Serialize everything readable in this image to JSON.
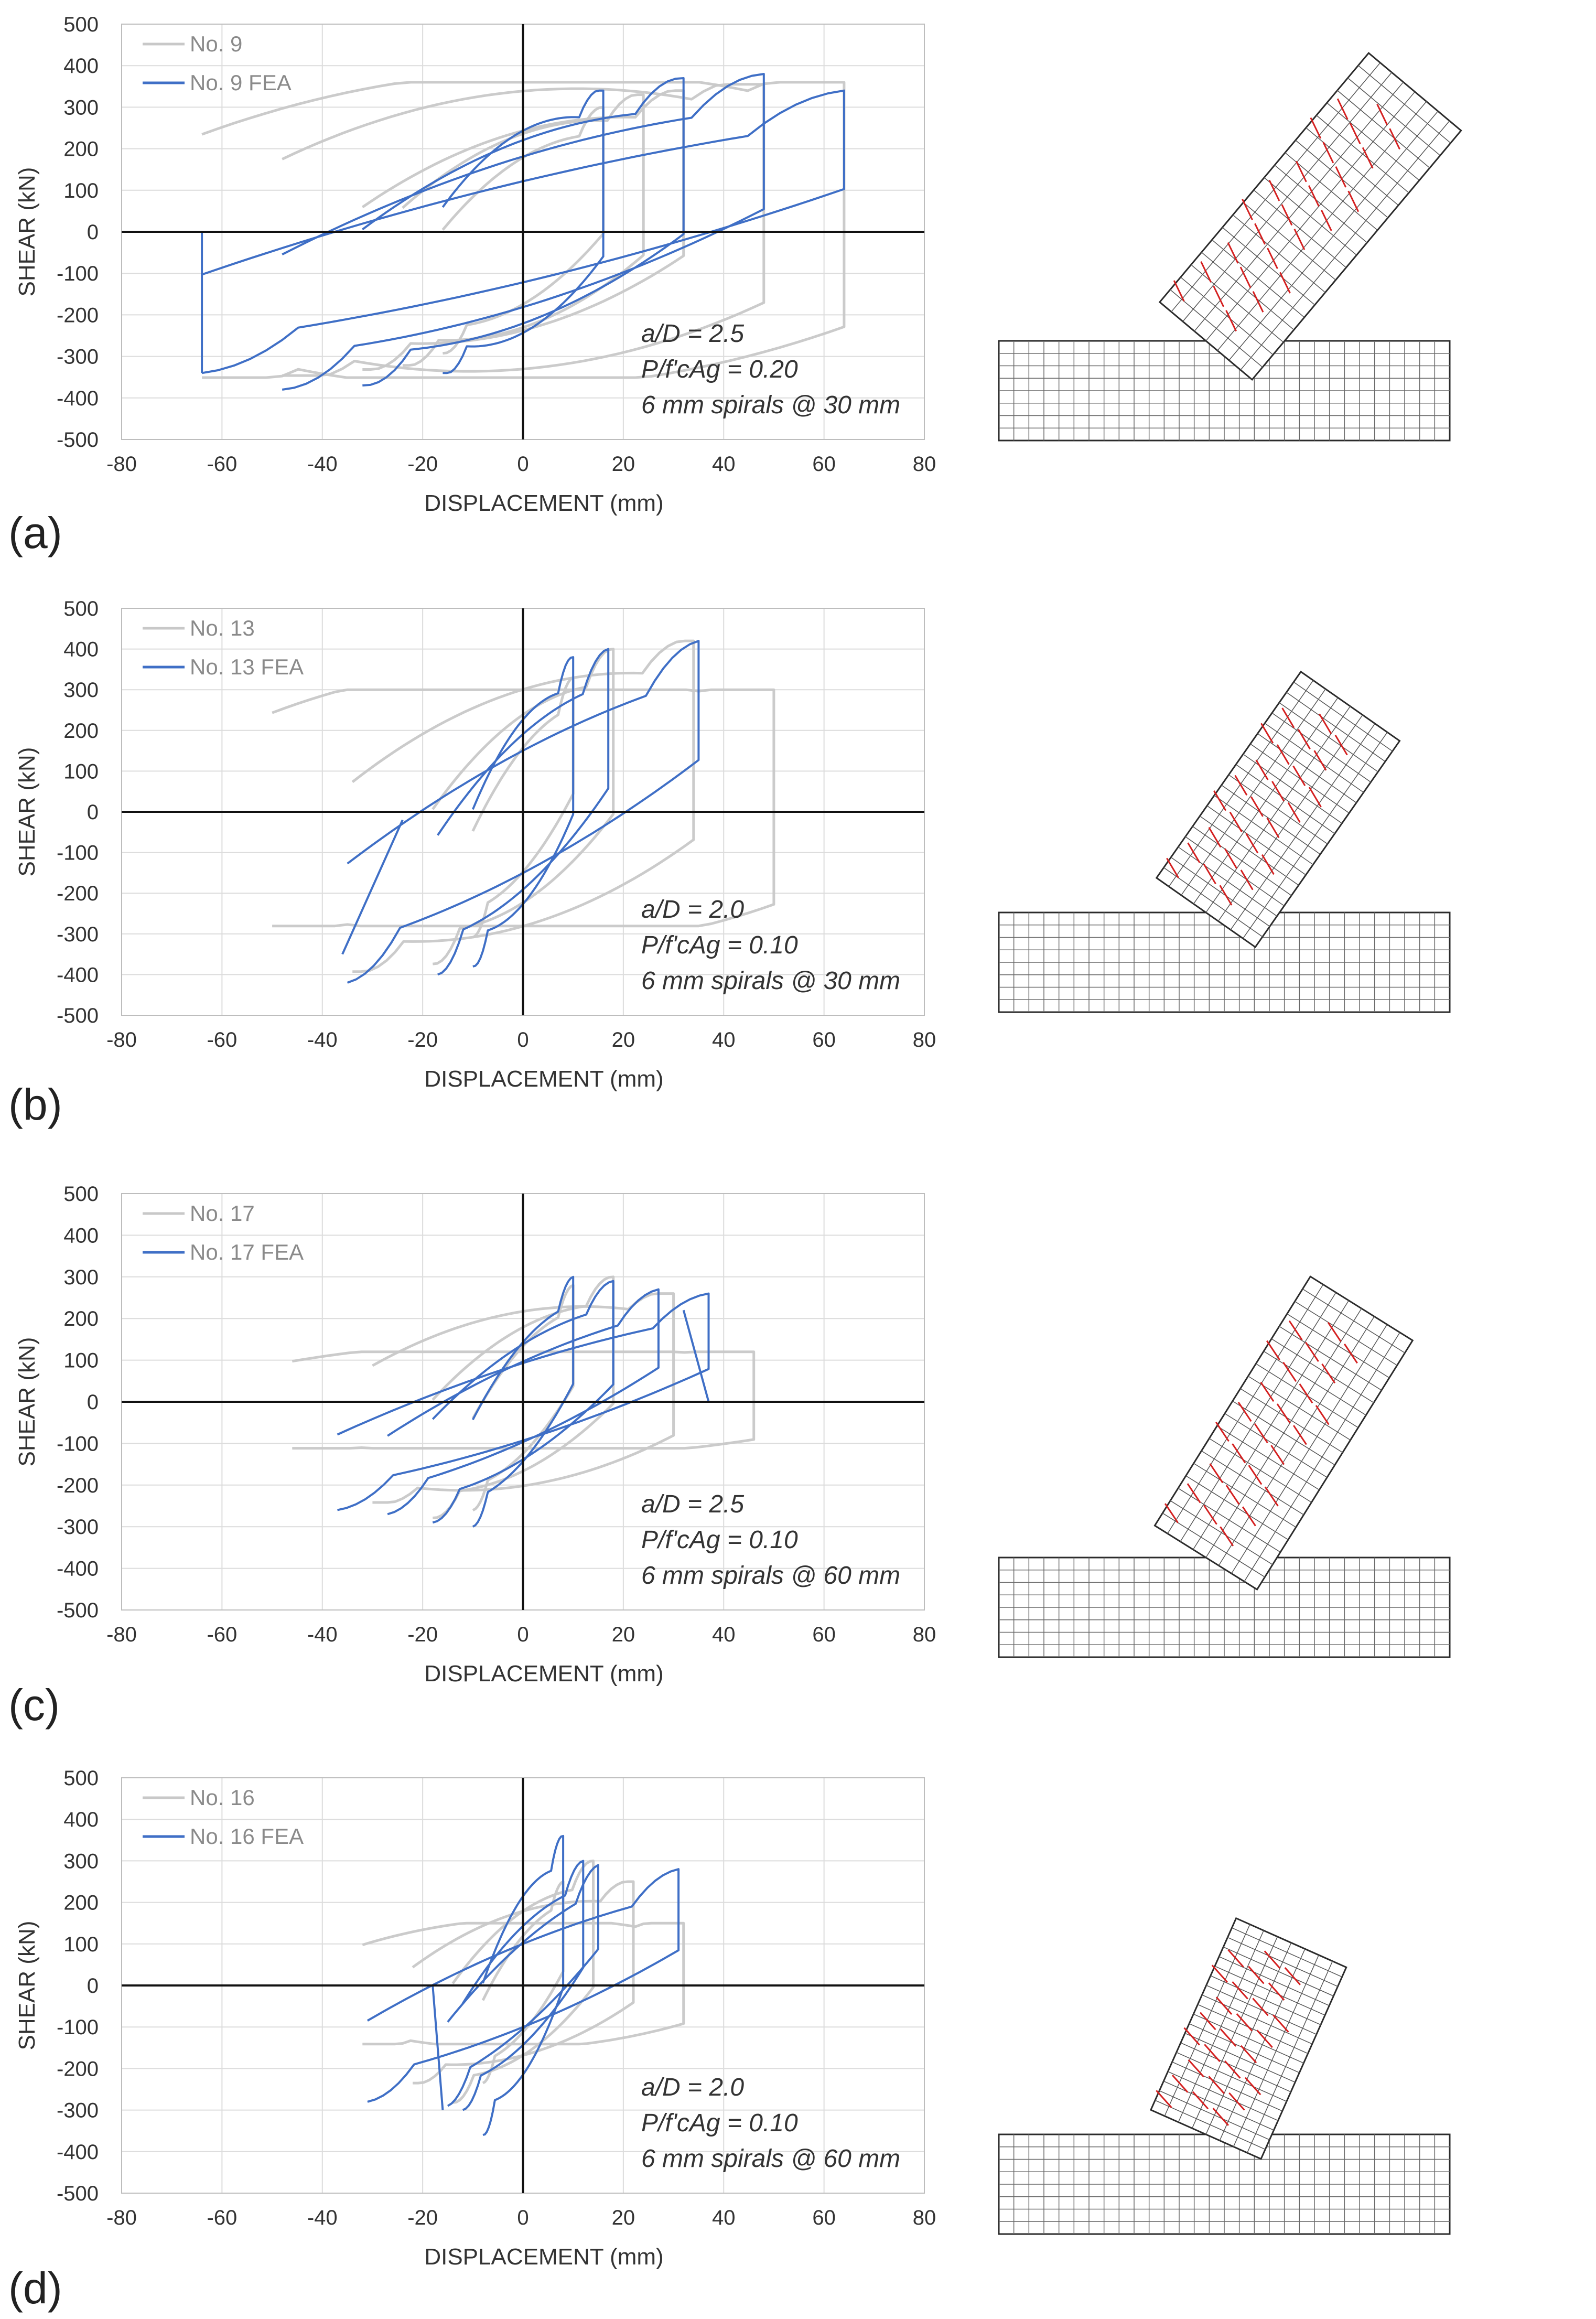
{
  "colors": {
    "test": "#c8c8c8",
    "fea": "#3f6fc6",
    "grid": "#dcdcdc",
    "axis": "#111111",
    "mesh": "#2b2b2b",
    "crack": "#d42020"
  },
  "chart_data": [
    {
      "type": "line",
      "panel_label": "(a)",
      "xlabel": "DISPLACEMENT (mm)",
      "ylabel": "SHEAR (kN)",
      "xlim": [
        -80,
        80
      ],
      "ylim": [
        -500,
        500
      ],
      "grid": true,
      "xticks": [
        "-80",
        "-60",
        "-40",
        "-20",
        "0",
        "20",
        "40",
        "60",
        "80"
      ],
      "yticks": [
        "500",
        "400",
        "300",
        "200",
        "100",
        "0",
        "-100",
        "-200",
        "-300",
        "-400",
        "-500"
      ],
      "legend": [
        "No. 9",
        "No. 9 FEA"
      ],
      "annotations": {
        "line1": "a/D = 2.5",
        "line2": "P/f'cAg = 0.20",
        "line3": "6 mm spirals @ 30 mm"
      },
      "series": [
        {
          "name": "No. 9",
          "role": "test",
          "loops": [
            [
              16,
              300,
              5
            ],
            [
              24,
              330,
              6
            ],
            [
              32,
              340,
              6
            ],
            [
              48,
              355,
              8
            ],
            [
              64,
              360,
              9
            ]
          ],
          "post": 0.75
        },
        {
          "name": "No. 9 FEA",
          "role": "fea",
          "loops": [
            [
              16,
              340,
              6
            ],
            [
              32,
              370,
              5
            ],
            [
              48,
              380,
              4
            ],
            [
              64,
              340,
              3
            ]
          ],
          "post": 1.0,
          "tail": [
            [
              -64,
              -340
            ],
            [
              -64,
              0
            ]
          ]
        }
      ]
    },
    {
      "type": "line",
      "panel_label": "(b)",
      "xlabel": "DISPLACEMENT (mm)",
      "ylabel": "SHEAR (kN)",
      "xlim": [
        -80,
        80
      ],
      "ylim": [
        -500,
        500
      ],
      "grid": true,
      "xticks": [
        "-80",
        "-60",
        "-40",
        "-20",
        "0",
        "20",
        "40",
        "60",
        "80"
      ],
      "yticks": [
        "500",
        "400",
        "300",
        "200",
        "100",
        "0",
        "-100",
        "-200",
        "-300",
        "-400",
        "-500"
      ],
      "legend": [
        "No. 13",
        "No. 13 FEA"
      ],
      "annotations": {
        "line1": "a/D = 2.0",
        "line2": "P/f'cAg = 0.10",
        "line3": "6 mm spirals @ 30 mm"
      },
      "series": [
        {
          "name": "No. 13",
          "role": "test",
          "loops": [
            [
              10,
              330,
              4
            ],
            [
              18,
              400,
              5
            ],
            [
              34,
              420,
              6
            ],
            [
              50,
              300,
              10
            ]
          ],
          "post": 0.35
        },
        {
          "name": "No. 13 FEA",
          "role": "fea",
          "loops": [
            [
              10,
              380,
              5
            ],
            [
              17,
              400,
              4
            ],
            [
              35,
              420,
              3
            ]
          ],
          "post": 1.0,
          "tail": [
            [
              -36,
              -350
            ],
            [
              -24,
              -20
            ]
          ]
        }
      ]
    },
    {
      "type": "line",
      "panel_label": "(c)",
      "xlabel": "DISPLACEMENT (mm)",
      "ylabel": "SHEAR (kN)",
      "xlim": [
        -80,
        80
      ],
      "ylim": [
        -500,
        500
      ],
      "grid": true,
      "xticks": [
        "-80",
        "-60",
        "-40",
        "-20",
        "0",
        "20",
        "40",
        "60",
        "80"
      ],
      "yticks": [
        "500",
        "400",
        "300",
        "200",
        "100",
        "0",
        "-100",
        "-200",
        "-300",
        "-400",
        "-500"
      ],
      "legend": [
        "No. 17",
        "No. 17 FEA"
      ],
      "annotations": {
        "line1": "a/D = 2.5",
        "line2": "P/f'cAg = 0.10",
        "line3": "6 mm spirals @ 60 mm"
      },
      "series": [
        {
          "name": "No. 17",
          "role": "test",
          "loops": [
            [
              10,
              280,
              4
            ],
            [
              18,
              300,
              5
            ],
            [
              30,
              260,
              7
            ],
            [
              46,
              120,
              10
            ]
          ],
          "post": 0.3
        },
        {
          "name": "No. 17 FEA",
          "role": "fea",
          "loops": [
            [
              10,
              300,
              4
            ],
            [
              18,
              290,
              4
            ],
            [
              27,
              270,
              3
            ],
            [
              37,
              260,
              3
            ]
          ],
          "post": 1.0,
          "tail": [
            [
              37,
              0
            ],
            [
              32,
              220
            ]
          ]
        }
      ]
    },
    {
      "type": "line",
      "panel_label": "(d)",
      "xlabel": "DISPLACEMENT (mm)",
      "ylabel": "SHEAR (kN)",
      "xlim": [
        -80,
        80
      ],
      "ylim": [
        -500,
        500
      ],
      "grid": true,
      "xticks": [
        "-80",
        "-60",
        "-40",
        "-20",
        "0",
        "20",
        "40",
        "60",
        "80"
      ],
      "yticks": [
        "500",
        "400",
        "300",
        "200",
        "100",
        "0",
        "-100",
        "-200",
        "-300",
        "-400",
        "-500"
      ],
      "legend": [
        "No. 16",
        "No. 16 FEA"
      ],
      "annotations": {
        "line1": "a/D = 2.0",
        "line2": "P/f'cAg = 0.10",
        "line3": "6 mm spirals @ 60 mm"
      },
      "series": [
        {
          "name": "No. 16",
          "role": "test",
          "loops": [
            [
              8,
              250,
              4
            ],
            [
              14,
              300,
              5
            ],
            [
              22,
              250,
              6
            ],
            [
              32,
              150,
              9
            ]
          ],
          "post": 0.4
        },
        {
          "name": "No. 16 FEA",
          "role": "fea",
          "loops": [
            [
              8,
              360,
              5
            ],
            [
              12,
              300,
              4
            ],
            [
              15,
              290,
              3
            ],
            [
              31,
              280,
              3
            ]
          ],
          "post": 1.0,
          "tail": [
            [
              -18,
              0
            ],
            [
              -16,
              -300
            ]
          ]
        }
      ]
    }
  ],
  "fea_mesh_images": [
    {
      "panel": "(a)",
      "description": "deformed FE mesh, column inclined to right over footing block"
    },
    {
      "panel": "(b)",
      "description": "deformed FE mesh"
    },
    {
      "panel": "(c)",
      "description": "deformed FE mesh"
    },
    {
      "panel": "(d)",
      "description": "deformed FE mesh"
    }
  ]
}
